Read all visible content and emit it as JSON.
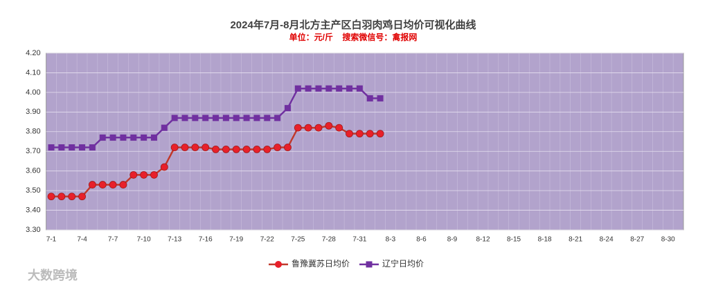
{
  "chart_data": {
    "type": "line",
    "title": "2024年7月-8月北方主产区白羽肉鸡日均价可视化曲线",
    "subtitle": "单位：元/斤    搜索微信号：禽报网",
    "watermark": "大数跨境",
    "categories": [
      "7-1",
      null,
      null,
      "7-4",
      null,
      null,
      "7-7",
      null,
      null,
      "7-10",
      null,
      null,
      "7-13",
      null,
      null,
      "7-16",
      null,
      null,
      "7-19",
      null,
      null,
      "7-22",
      null,
      null,
      "7-25",
      null,
      null,
      "7-28",
      null,
      null,
      "7-31",
      null,
      null,
      "8-3",
      null,
      null,
      "8-6",
      null,
      null,
      "8-9",
      null,
      null,
      "8-12",
      null,
      null,
      "8-15",
      null,
      null,
      "8-18",
      null,
      null,
      "8-21",
      null,
      null,
      "8-24",
      null,
      null,
      "8-27",
      null,
      null,
      "8-30",
      null
    ],
    "series": [
      {
        "name": "鲁豫冀苏日均价",
        "color": "#c0392b",
        "marker": "circle",
        "marker_color": "#e8202a",
        "values": [
          3.47,
          3.47,
          3.47,
          3.47,
          3.53,
          3.53,
          3.53,
          3.53,
          3.58,
          3.58,
          3.58,
          3.62,
          3.72,
          3.72,
          3.72,
          3.72,
          3.71,
          3.71,
          3.71,
          3.71,
          3.71,
          3.71,
          3.72,
          3.72,
          3.82,
          3.82,
          3.82,
          3.83,
          3.82,
          3.79,
          3.79,
          3.79,
          3.79,
          null,
          null,
          null,
          null,
          null,
          null,
          null,
          null,
          null,
          null,
          null,
          null,
          null,
          null,
          null,
          null,
          null,
          null,
          null,
          null,
          null,
          null,
          null,
          null,
          null,
          null,
          null,
          null,
          null
        ]
      },
      {
        "name": "辽宁日均价",
        "color": "#7030a0",
        "marker": "square",
        "marker_color": "#7030a0",
        "values": [
          3.72,
          3.72,
          3.72,
          3.72,
          3.72,
          3.77,
          3.77,
          3.77,
          3.77,
          3.77,
          3.77,
          3.82,
          3.87,
          3.87,
          3.87,
          3.87,
          3.87,
          3.87,
          3.87,
          3.87,
          3.87,
          3.87,
          3.87,
          3.92,
          4.02,
          4.02,
          4.02,
          4.02,
          4.02,
          4.02,
          4.02,
          3.97,
          3.97,
          null,
          null,
          null,
          null,
          null,
          null,
          null,
          null,
          null,
          null,
          null,
          null,
          null,
          null,
          null,
          null,
          null,
          null,
          null,
          null,
          null,
          null,
          null,
          null,
          null,
          null,
          null,
          null,
          null
        ]
      }
    ],
    "ylim": [
      3.3,
      4.2
    ],
    "yticks": [
      {
        "value": 3.3,
        "label": "3.30"
      },
      {
        "value": 3.4,
        "label": "3.40"
      },
      {
        "value": 3.5,
        "label": "3.50"
      },
      {
        "value": 3.6,
        "label": "3.60"
      },
      {
        "value": 3.7,
        "label": "3.70"
      },
      {
        "value": 3.8,
        "label": "3.80"
      },
      {
        "value": 3.9,
        "label": "3.90"
      },
      {
        "value": 4.0,
        "label": "4.00"
      },
      {
        "value": 4.1,
        "label": "4.10"
      },
      {
        "value": 4.2,
        "label": "4.20"
      }
    ],
    "grid": true,
    "plot_background": "#b2a3cc",
    "legend": "bottom"
  }
}
